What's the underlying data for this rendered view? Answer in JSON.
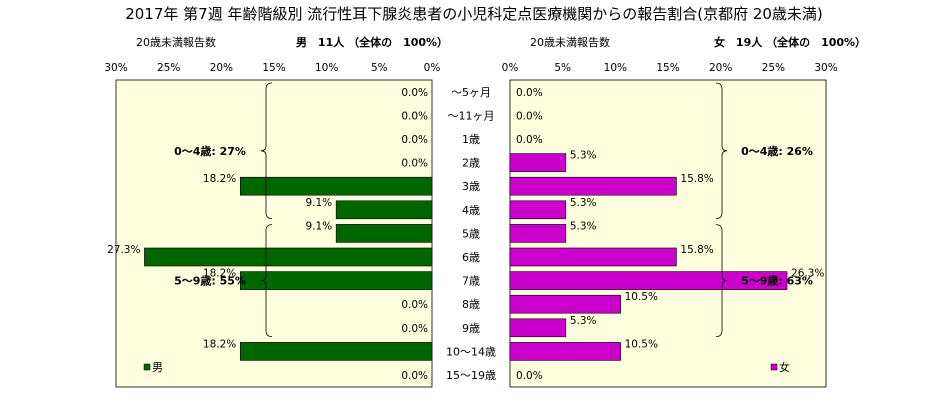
{
  "title": "2017年 第7週 年齢階級別 流行性耳下腺炎患者の小児科定点医療機関からの報告割合(京都府 20歳未満)",
  "chart_data": {
    "type": "bar",
    "categories": [
      "～5ヶ月",
      "～11ヶ月",
      "1歳",
      "2歳",
      "3歳",
      "4歳",
      "5歳",
      "6歳",
      "7歳",
      "8歳",
      "9歳",
      "10～14歳",
      "15～19歳"
    ],
    "xlim": [
      0,
      30
    ],
    "ticks": [
      0,
      5,
      10,
      15,
      20,
      25,
      30
    ],
    "tick_labels": [
      "0%",
      "5%",
      "10%",
      "15%",
      "20%",
      "25%",
      "30%"
    ],
    "male": {
      "header_label": "20歳未満報告数",
      "header_summary": "男　11人 （全体の　100%）",
      "legend": "男",
      "color": "#006600",
      "values": [
        0.0,
        0.0,
        0.0,
        0.0,
        18.2,
        9.1,
        9.1,
        27.3,
        18.2,
        0.0,
        0.0,
        18.2,
        0.0
      ],
      "value_labels": [
        "0.0%",
        "0.0%",
        "0.0%",
        "0.0%",
        "18.2%",
        "9.1%",
        "9.1%",
        "27.3%",
        "18.2%",
        "0.0%",
        "0.0%",
        "18.2%",
        "0.0%"
      ],
      "groups": [
        {
          "label": "0～4歳: 27%",
          "from": 0,
          "to": 5
        },
        {
          "label": "5～9歳: 55%",
          "from": 6,
          "to": 10
        }
      ]
    },
    "female": {
      "header_label": "20歳未満報告数",
      "header_summary": "女　19人 （全体の　100%）",
      "legend": "女",
      "color": "#cc00cc",
      "values": [
        0.0,
        0.0,
        0.0,
        5.3,
        15.8,
        5.3,
        5.3,
        15.8,
        26.3,
        10.5,
        5.3,
        10.5,
        0.0
      ],
      "value_labels": [
        "0.0%",
        "0.0%",
        "0.0%",
        "5.3%",
        "15.8%",
        "5.3%",
        "5.3%",
        "15.8%",
        "26.3%",
        "10.5%",
        "5.3%",
        "10.5%",
        "0.0%"
      ],
      "groups": [
        {
          "label": "0～4歳: 26%",
          "from": 0,
          "to": 5
        },
        {
          "label": "5～9歳: 63%",
          "from": 6,
          "to": 10
        }
      ]
    }
  }
}
